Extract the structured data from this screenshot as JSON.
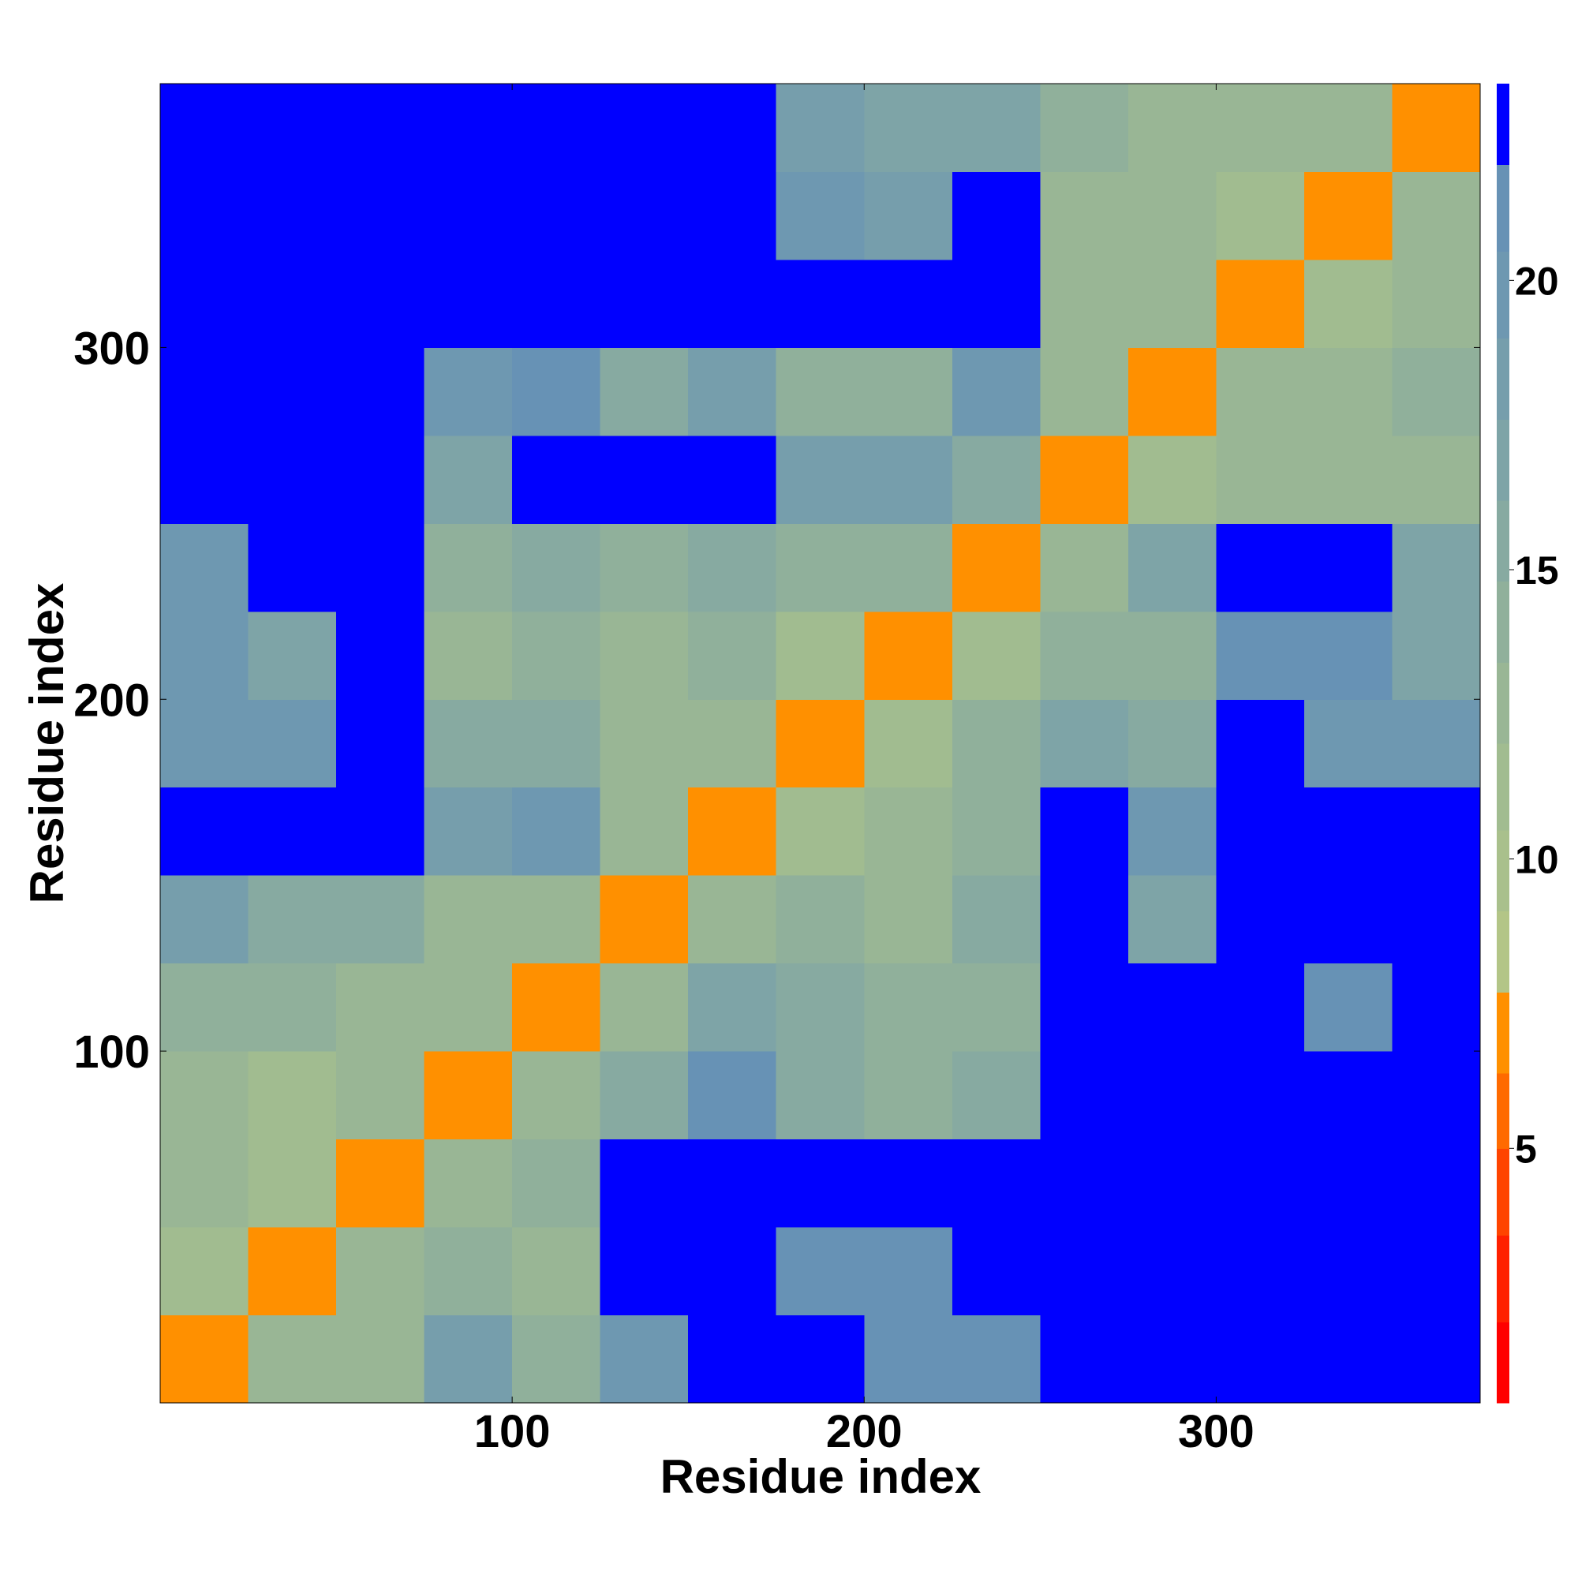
{
  "chart_data": {
    "type": "heatmap",
    "x_label": "Residue index",
    "y_label": "Residue index",
    "xlim": [
      0,
      375
    ],
    "ylim": [
      0,
      375
    ],
    "xticks": [
      100,
      200,
      300
    ],
    "yticks": [
      100,
      200,
      300
    ],
    "x_bins": [
      0,
      25,
      50,
      75,
      100,
      125,
      150,
      175,
      200,
      225,
      250,
      275,
      300,
      325,
      350,
      375
    ],
    "y_bins": [
      0,
      25,
      50,
      75,
      100,
      125,
      150,
      175,
      200,
      225,
      250,
      275,
      300,
      325,
      350,
      375
    ],
    "values": [
      [
        7,
        12,
        13,
        18,
        14,
        20,
        23,
        23,
        21,
        21,
        23,
        23,
        23,
        23,
        23
      ],
      [
        11,
        7,
        12,
        14,
        13,
        22,
        23,
        21,
        21,
        22,
        23,
        23,
        23,
        23,
        23
      ],
      [
        12,
        11,
        7,
        13,
        14,
        22,
        23,
        23,
        23,
        23,
        23,
        23,
        23,
        23,
        23
      ],
      [
        12,
        11,
        12,
        7,
        12,
        16,
        21,
        15,
        14,
        15,
        22,
        22,
        23,
        23,
        23
      ],
      [
        14,
        14,
        12,
        12,
        7,
        12,
        17,
        15,
        14,
        14,
        22,
        22,
        23,
        21,
        23
      ],
      [
        18,
        15,
        16,
        12,
        12,
        7,
        12,
        14,
        13,
        15,
        22,
        17,
        23,
        23,
        23
      ],
      [
        23,
        23,
        23,
        18,
        20,
        12,
        7,
        11,
        12,
        14,
        22,
        20,
        23,
        22,
        23
      ],
      [
        20,
        20,
        23,
        15,
        15,
        13,
        12,
        7,
        11,
        14,
        17,
        15,
        22,
        20,
        19
      ],
      [
        20,
        17,
        23,
        13,
        14,
        13,
        14,
        11,
        7,
        11,
        14,
        14,
        21,
        21,
        17
      ],
      [
        20,
        22,
        23,
        14,
        15,
        14,
        16,
        14,
        14,
        7,
        13,
        17,
        23,
        23,
        17
      ],
      [
        23,
        23,
        23,
        17,
        22,
        22,
        22,
        18,
        18,
        16,
        7,
        11,
        13,
        12,
        13
      ],
      [
        23,
        23,
        23,
        20,
        21,
        15,
        18,
        14,
        14,
        19,
        12,
        7,
        12,
        13,
        14
      ],
      [
        23,
        23,
        23,
        23,
        23,
        23,
        23,
        22,
        22,
        23,
        13,
        12,
        7,
        11,
        13
      ],
      [
        23,
        23,
        23,
        22,
        23,
        23,
        23,
        19,
        18,
        23,
        13,
        13,
        11,
        7,
        12
      ],
      [
        23,
        23,
        23,
        23,
        23,
        23,
        22,
        18,
        17,
        17,
        14,
        13,
        13,
        12,
        7
      ]
    ],
    "clim": [
      0.6,
      23.4
    ],
    "cticks": [
      5,
      10,
      15,
      20
    ],
    "color_levels": {
      "bounds": [
        0.6,
        2,
        3.5,
        5,
        6.3,
        7.7,
        9.1,
        10.5,
        12,
        13.4,
        14.8,
        16.2,
        17.6,
        19,
        20.5,
        22,
        23.4
      ],
      "colors": [
        "#ff0000",
        "#ff2000",
        "#ff4400",
        "#ff6a00",
        "#ff9000",
        "#b3c587",
        "#a9c08c",
        "#a1bc90",
        "#99b695",
        "#90b09b",
        "#87aaa1",
        "#7ea4a7",
        "#769eac",
        "#6e98b1",
        "#6792b5",
        "#0000ff"
      ]
    }
  }
}
